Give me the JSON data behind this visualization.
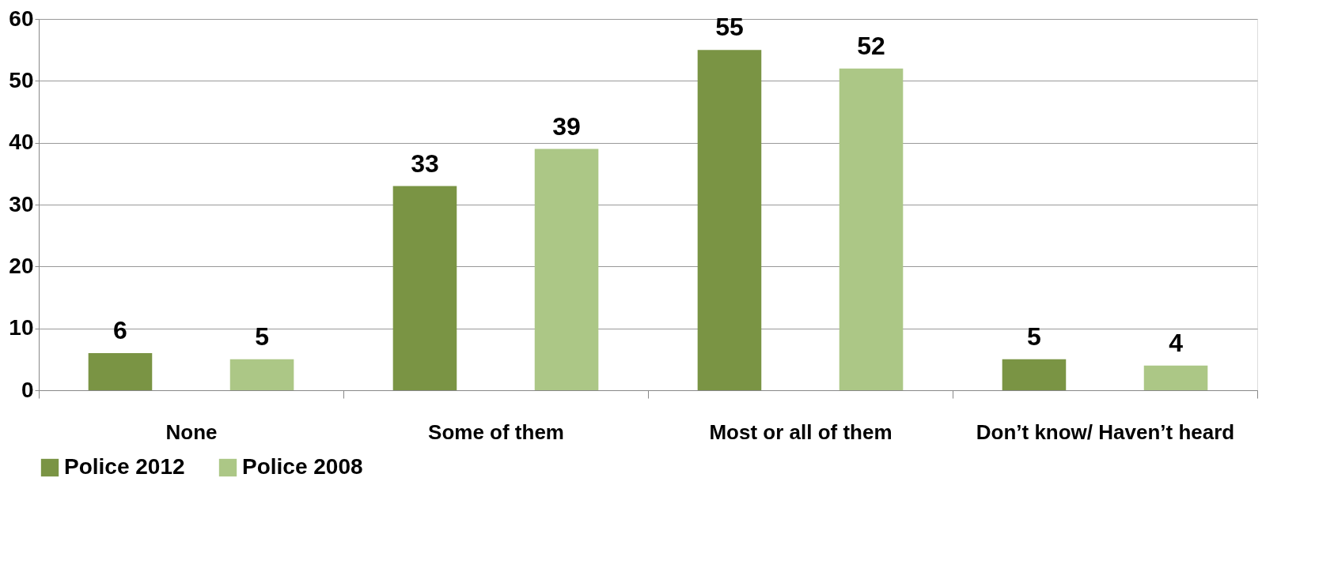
{
  "chart_data": {
    "type": "bar",
    "categories": [
      "None",
      "Some of them",
      "Most or all of them",
      "Don’t know/ Haven’t heard"
    ],
    "series": [
      {
        "name": "Police 2012",
        "color": "#7a9444",
        "values": [
          6,
          33,
          55,
          5
        ]
      },
      {
        "name": "Police 2008",
        "color": "#acc786",
        "values": [
          5,
          39,
          52,
          4
        ]
      }
    ],
    "ylim": [
      0,
      60
    ],
    "yticks": [
      0,
      10,
      20,
      30,
      40,
      50,
      60
    ],
    "grid": "y",
    "legend": "bottom",
    "data_labels": true
  }
}
